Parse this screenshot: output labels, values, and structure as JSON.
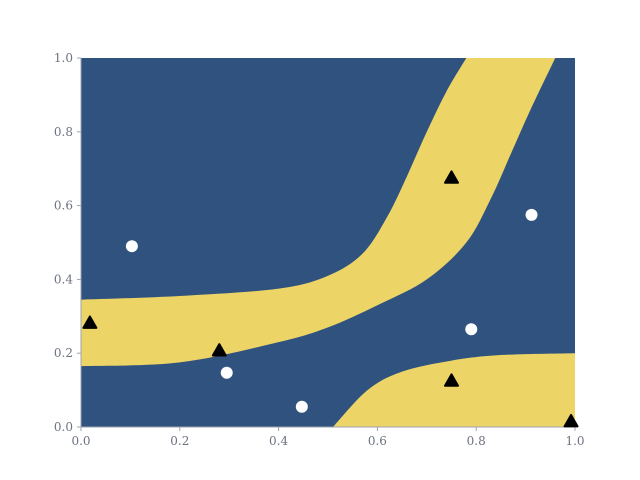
{
  "chart_data": {
    "type": "scatter",
    "title": "",
    "xlabel": "",
    "ylabel": "",
    "xlim": [
      0.0,
      1.0
    ],
    "ylim": [
      0.0,
      1.0
    ],
    "grid": false,
    "legend": "none",
    "x_ticks": [
      "0.0",
      "0.2",
      "0.4",
      "0.6",
      "0.8",
      "1.0"
    ],
    "y_ticks": [
      "0.0",
      "0.2",
      "0.4",
      "0.6",
      "0.8",
      "1.0"
    ],
    "colors": {
      "background": "#30527f",
      "region": "#ecd566",
      "circle": "#ffffff",
      "triangle": "#000000",
      "axis": "#9ca3af",
      "tick_text": "#6b7280"
    },
    "region_bands": [
      {
        "upper": [
          [
            0.0,
            0.345
          ],
          [
            0.2,
            0.355
          ],
          [
            0.4,
            0.375
          ],
          [
            0.5,
            0.41
          ],
          [
            0.57,
            0.47
          ],
          [
            0.62,
            0.57
          ],
          [
            0.66,
            0.68
          ],
          [
            0.7,
            0.8
          ],
          [
            0.74,
            0.91
          ],
          [
            0.78,
            1.0
          ]
        ],
        "lower": [
          [
            0.0,
            0.165
          ],
          [
            0.2,
            0.175
          ],
          [
            0.4,
            0.23
          ],
          [
            0.5,
            0.27
          ],
          [
            0.6,
            0.33
          ],
          [
            0.7,
            0.4
          ],
          [
            0.78,
            0.5
          ],
          [
            0.83,
            0.62
          ],
          [
            0.87,
            0.74
          ],
          [
            0.91,
            0.86
          ],
          [
            0.96,
            1.0
          ]
        ]
      },
      {
        "upper": [
          [
            0.51,
            0.0
          ],
          [
            0.58,
            0.1
          ],
          [
            0.65,
            0.15
          ],
          [
            0.75,
            0.18
          ],
          [
            0.85,
            0.195
          ],
          [
            1.0,
            0.2
          ]
        ],
        "lower": [
          [
            1.0,
            0.0
          ]
        ]
      }
    ],
    "series": [
      {
        "marker": "circle",
        "points": [
          [
            0.103,
            0.49
          ],
          [
            0.295,
            0.147
          ],
          [
            0.447,
            0.055
          ],
          [
            0.79,
            0.265
          ],
          [
            0.912,
            0.575
          ]
        ]
      },
      {
        "marker": "triangle",
        "points": [
          [
            0.018,
            0.282
          ],
          [
            0.28,
            0.207
          ],
          [
            0.75,
            0.675
          ],
          [
            0.75,
            0.125
          ],
          [
            0.992,
            0.015
          ]
        ]
      }
    ]
  }
}
